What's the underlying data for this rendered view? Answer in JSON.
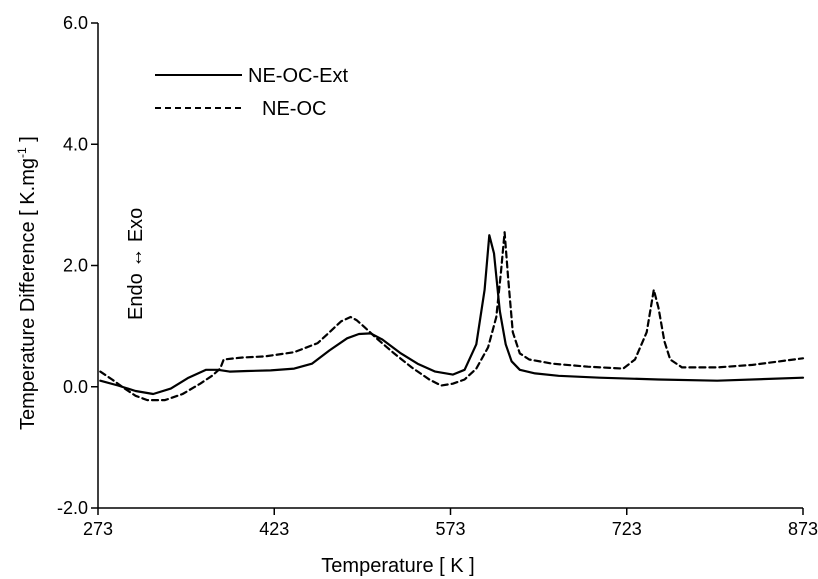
{
  "chart_data": {
    "type": "line",
    "xlabel": "Temperature [ K ]",
    "ylabel_main": "Temperature Difference [ K.mg",
    "ylabel_sup": "-1",
    "ylabel_end": " ]",
    "annotation": "Endo ↔ Exo",
    "xlim": [
      273,
      873
    ],
    "ylim": [
      -2.0,
      6.0
    ],
    "xticks": [
      273,
      423,
      573,
      723,
      873
    ],
    "xtick_labels": [
      "273",
      "423",
      "573",
      "723",
      "873"
    ],
    "yticks": [
      -2.0,
      0.0,
      2.0,
      4.0,
      6.0
    ],
    "ytick_labels": [
      "-2.0",
      "0.0",
      "2.0",
      "4.0",
      "6.0"
    ],
    "legend_position": "top-left",
    "grid": false,
    "series": [
      {
        "name": "NE-OC-Ext",
        "style": "solid",
        "color": "#000000",
        "x": [
          275,
          290,
          305,
          320,
          335,
          350,
          365,
          375,
          385,
          400,
          420,
          440,
          455,
          470,
          485,
          495,
          505,
          515,
          530,
          545,
          560,
          575,
          585,
          595,
          602,
          606,
          610,
          615,
          620,
          625,
          632,
          645,
          665,
          700,
          750,
          800,
          873
        ],
        "y": [
          0.1,
          0.02,
          -0.07,
          -0.12,
          -0.03,
          0.15,
          0.28,
          0.28,
          0.25,
          0.26,
          0.27,
          0.3,
          0.38,
          0.6,
          0.8,
          0.87,
          0.88,
          0.78,
          0.56,
          0.38,
          0.25,
          0.2,
          0.28,
          0.7,
          1.6,
          2.5,
          2.2,
          1.25,
          0.7,
          0.42,
          0.28,
          0.22,
          0.18,
          0.15,
          0.12,
          0.1,
          0.15
        ]
      },
      {
        "name": "NE-OC",
        "style": "dashed",
        "color": "#000000",
        "x": [
          275,
          285,
          295,
          305,
          315,
          330,
          345,
          360,
          370,
          377,
          380,
          395,
          415,
          440,
          460,
          470,
          480,
          488,
          493,
          500,
          510,
          525,
          540,
          555,
          565,
          575,
          585,
          595,
          605,
          612,
          616,
          619,
          622,
          626,
          632,
          640,
          660,
          690,
          720,
          730,
          740,
          746,
          750,
          755,
          760,
          770,
          800,
          830,
          873
        ],
        "y": [
          0.25,
          0.12,
          -0.02,
          -0.15,
          -0.22,
          -0.22,
          -0.12,
          0.05,
          0.18,
          0.3,
          0.45,
          0.48,
          0.5,
          0.57,
          0.72,
          0.9,
          1.08,
          1.15,
          1.1,
          0.98,
          0.8,
          0.55,
          0.32,
          0.12,
          0.02,
          0.05,
          0.12,
          0.3,
          0.65,
          1.15,
          1.9,
          2.55,
          1.8,
          0.9,
          0.55,
          0.45,
          0.38,
          0.33,
          0.3,
          0.45,
          0.9,
          1.6,
          1.3,
          0.75,
          0.45,
          0.32,
          0.32,
          0.36,
          0.47
        ]
      }
    ]
  }
}
